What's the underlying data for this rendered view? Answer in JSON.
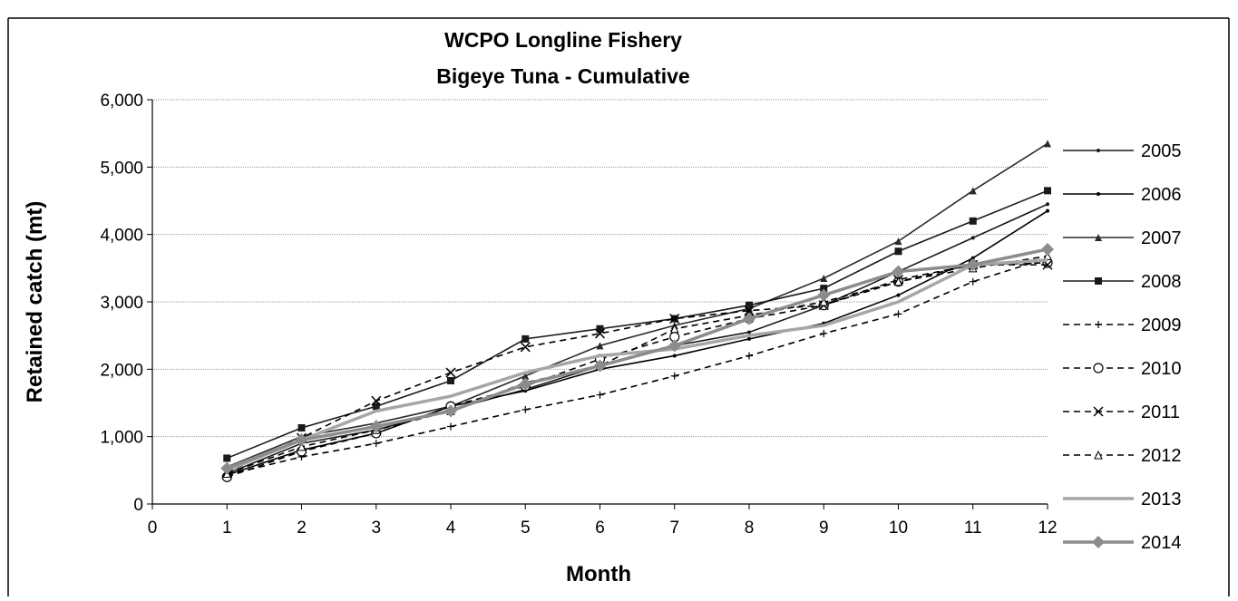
{
  "chart_data": {
    "type": "line",
    "title": [
      "WCPO Longline Fishery",
      "Bigeye Tuna - Cumulative"
    ],
    "xlabel": "Month",
    "ylabel": "Retained catch (mt)",
    "xlim": [
      0,
      12
    ],
    "ylim": [
      0,
      6000
    ],
    "x_ticks": [
      "0",
      "1",
      "2",
      "3",
      "4",
      "5",
      "6",
      "7",
      "8",
      "9",
      "10",
      "11",
      "12"
    ],
    "y_ticks": [
      "0",
      "1,000",
      "2,000",
      "3,000",
      "4,000",
      "5,000",
      "6,000"
    ],
    "y_tick_values": [
      0,
      1000,
      2000,
      3000,
      4000,
      5000,
      6000
    ],
    "grid": "horizontal",
    "legend_position": "right",
    "x": [
      1,
      2,
      3,
      4,
      5,
      6,
      7,
      8,
      9,
      10,
      11,
      12
    ],
    "series": [
      {
        "name": "2005",
        "color": "#1a1a1a",
        "dash": "solid",
        "marker": "dot",
        "values": [
          450,
          900,
          1100,
          1400,
          1700,
          2050,
          2350,
          2550,
          2950,
          3450,
          3950,
          4450
        ]
      },
      {
        "name": "2006",
        "color": "#000000",
        "dash": "solid",
        "marker": "dot",
        "values": [
          430,
          800,
          1050,
          1450,
          1680,
          2000,
          2200,
          2450,
          2680,
          3100,
          3650,
          4350
        ]
      },
      {
        "name": "2007",
        "color": "#2a2a2a",
        "dash": "solid",
        "marker": "triangle",
        "values": [
          550,
          1000,
          1200,
          1450,
          1900,
          2350,
          2650,
          2900,
          3350,
          3900,
          4650,
          5350
        ]
      },
      {
        "name": "2008",
        "color": "#1a1a1a",
        "dash": "solid",
        "marker": "square",
        "values": [
          680,
          1130,
          1450,
          1830,
          2450,
          2600,
          2750,
          2950,
          3200,
          3750,
          4200,
          4650
        ]
      },
      {
        "name": "2009",
        "color": "#000000",
        "dash": "dashed",
        "marker": "plus",
        "values": [
          430,
          700,
          900,
          1150,
          1400,
          1620,
          1900,
          2200,
          2530,
          2820,
          3300,
          3650
        ]
      },
      {
        "name": "2010",
        "color": "#000000",
        "dash": "dashed",
        "marker": "circle",
        "values": [
          400,
          780,
          1050,
          1450,
          1750,
          2150,
          2480,
          2750,
          2950,
          3300,
          3550,
          3580
        ]
      },
      {
        "name": "2011",
        "color": "#000000",
        "dash": "dashed",
        "marker": "x",
        "values": [
          470,
          980,
          1530,
          1950,
          2330,
          2530,
          2750,
          2870,
          2950,
          3330,
          3550,
          3550
        ]
      },
      {
        "name": "2012",
        "color": "#000000",
        "dash": "dashed",
        "marker": "triangle-open",
        "values": [
          450,
          850,
          1100,
          1380,
          1800,
          2050,
          2600,
          2800,
          3000,
          3300,
          3500,
          3680
        ]
      },
      {
        "name": "2013",
        "color": "#a6a6a6",
        "dash": "solid",
        "marker": "none",
        "values": [
          500,
          950,
          1380,
          1600,
          1950,
          2200,
          2300,
          2500,
          2650,
          3000,
          3550,
          3620
        ]
      },
      {
        "name": "2014",
        "color": "#8c8c8c",
        "dash": "solid",
        "marker": "diamond",
        "values": [
          530,
          950,
          1150,
          1380,
          1780,
          2050,
          2350,
          2750,
          3100,
          3450,
          3550,
          3780
        ]
      }
    ]
  }
}
